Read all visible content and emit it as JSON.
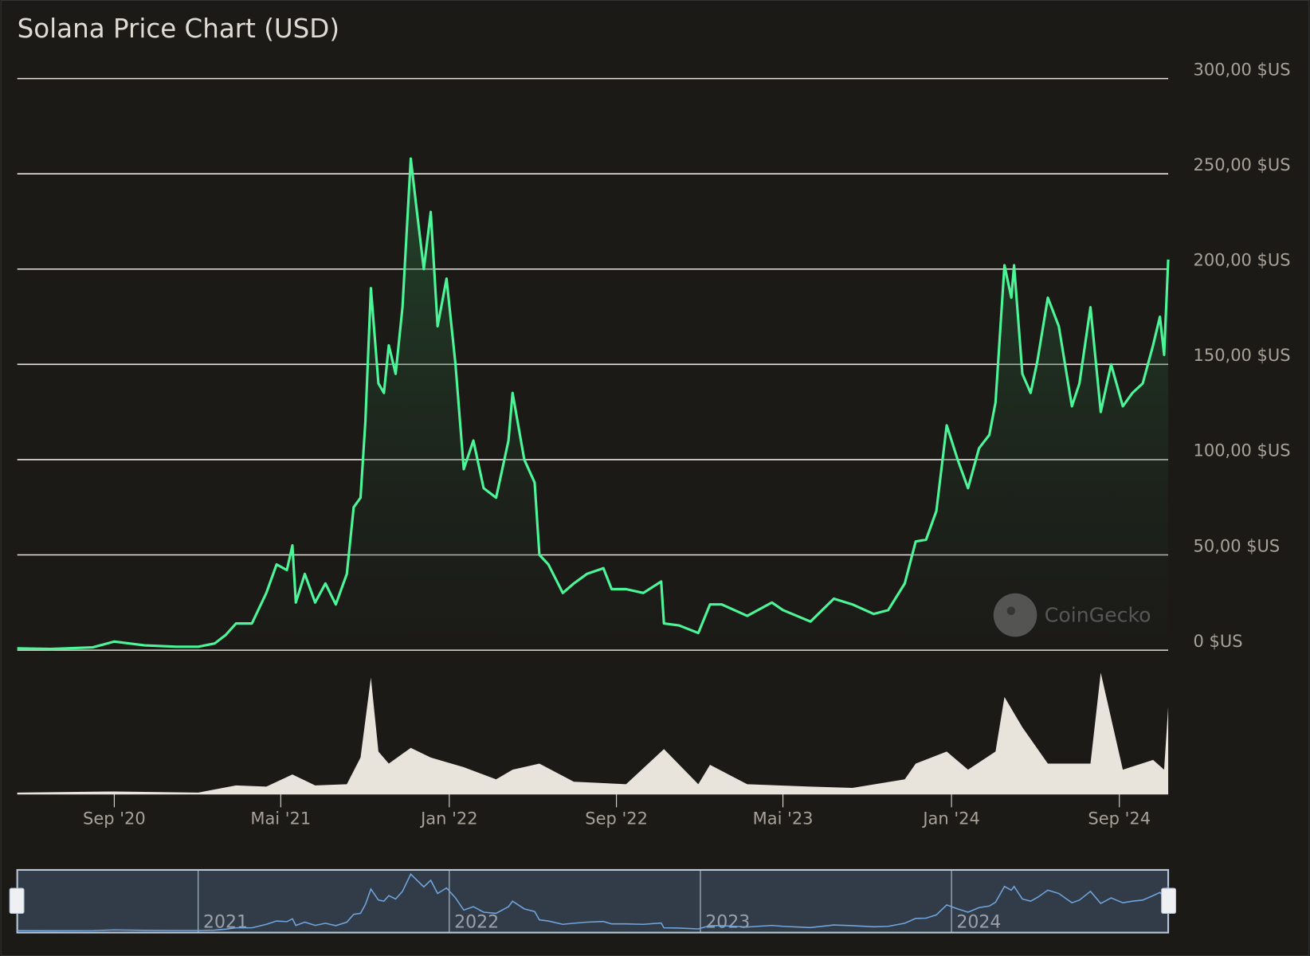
{
  "chart_data": {
    "type": "area",
    "title": "Solana Price Chart (USD)",
    "xlabel": "",
    "ylabel": "",
    "ylim": [
      0,
      300
    ],
    "xlim": [
      "2020-04-13",
      "2024-11-11"
    ],
    "grid": true,
    "legend": "none",
    "y_ticks": [
      {
        "value": 0,
        "label": "0 $US"
      },
      {
        "value": 50,
        "label": "50,00 $US"
      },
      {
        "value": 100,
        "label": "100,00 $US"
      },
      {
        "value": 150,
        "label": "150,00 $US"
      },
      {
        "value": 200,
        "label": "200,00 $US"
      },
      {
        "value": 250,
        "label": "250,00 $US"
      },
      {
        "value": 300,
        "label": "300,00 $US"
      }
    ],
    "x_ticks": [
      {
        "date": "2020-09-01",
        "label": "Sep '20"
      },
      {
        "date": "2021-05-01",
        "label": "Mai '21"
      },
      {
        "date": "2022-01-01",
        "label": "Jan '22"
      },
      {
        "date": "2022-09-01",
        "label": "Sep '22"
      },
      {
        "date": "2023-05-01",
        "label": "Mai '23"
      },
      {
        "date": "2024-01-01",
        "label": "Jan '24"
      },
      {
        "date": "2024-09-01",
        "label": "Sep '24"
      }
    ],
    "navigator_years": [
      {
        "date": "2021-01-01",
        "label": "2021"
      },
      {
        "date": "2022-01-01",
        "label": "2022"
      },
      {
        "date": "2023-01-01",
        "label": "2023"
      },
      {
        "date": "2024-01-01",
        "label": "2024"
      }
    ],
    "colors": {
      "line": "#4cf597",
      "volume": "#e8e4dc",
      "navigator_line": "#6fa4dc",
      "background": "#1b1a17",
      "grid": "#e8e4dc"
    },
    "price": [
      [
        "2020-04-13",
        0.95
      ],
      [
        "2020-06-01",
        0.6
      ],
      [
        "2020-08-01",
        1.5
      ],
      [
        "2020-09-01",
        4.5
      ],
      [
        "2020-10-15",
        2.5
      ],
      [
        "2020-12-01",
        1.8
      ],
      [
        "2021-01-01",
        1.8
      ],
      [
        "2021-01-25",
        3.5
      ],
      [
        "2021-02-10",
        8
      ],
      [
        "2021-02-25",
        14
      ],
      [
        "2021-03-20",
        14
      ],
      [
        "2021-04-10",
        30
      ],
      [
        "2021-04-25",
        45
      ],
      [
        "2021-05-10",
        42
      ],
      [
        "2021-05-18",
        55
      ],
      [
        "2021-05-23",
        25
      ],
      [
        "2021-06-05",
        40
      ],
      [
        "2021-06-20",
        25
      ],
      [
        "2021-07-05",
        35
      ],
      [
        "2021-07-20",
        24
      ],
      [
        "2021-08-05",
        40
      ],
      [
        "2021-08-15",
        75
      ],
      [
        "2021-08-25",
        80
      ],
      [
        "2021-09-01",
        120
      ],
      [
        "2021-09-09",
        190
      ],
      [
        "2021-09-20",
        140
      ],
      [
        "2021-09-28",
        135
      ],
      [
        "2021-10-05",
        160
      ],
      [
        "2021-10-15",
        145
      ],
      [
        "2021-10-25",
        180
      ],
      [
        "2021-11-06",
        258
      ],
      [
        "2021-11-15",
        230
      ],
      [
        "2021-11-25",
        200
      ],
      [
        "2021-12-05",
        230
      ],
      [
        "2021-12-15",
        170
      ],
      [
        "2021-12-28",
        195
      ],
      [
        "2022-01-10",
        150
      ],
      [
        "2022-01-22",
        95
      ],
      [
        "2022-02-05",
        110
      ],
      [
        "2022-02-20",
        85
      ],
      [
        "2022-03-10",
        80
      ],
      [
        "2022-03-28",
        110
      ],
      [
        "2022-04-03",
        135
      ],
      [
        "2022-04-20",
        100
      ],
      [
        "2022-05-05",
        88
      ],
      [
        "2022-05-12",
        50
      ],
      [
        "2022-05-25",
        45
      ],
      [
        "2022-06-15",
        30
      ],
      [
        "2022-07-01",
        35
      ],
      [
        "2022-07-20",
        40
      ],
      [
        "2022-08-13",
        43
      ],
      [
        "2022-08-25",
        32
      ],
      [
        "2022-09-15",
        32
      ],
      [
        "2022-10-10",
        30
      ],
      [
        "2022-11-05",
        36
      ],
      [
        "2022-11-09",
        14
      ],
      [
        "2022-12-01",
        13
      ],
      [
        "2022-12-29",
        9
      ],
      [
        "2023-01-15",
        24
      ],
      [
        "2023-02-01",
        24
      ],
      [
        "2023-03-10",
        18
      ],
      [
        "2023-04-15",
        25
      ],
      [
        "2023-05-01",
        21
      ],
      [
        "2023-06-10",
        15
      ],
      [
        "2023-07-14",
        27
      ],
      [
        "2023-08-10",
        24
      ],
      [
        "2023-09-10",
        19
      ],
      [
        "2023-10-01",
        21
      ],
      [
        "2023-10-25",
        35
      ],
      [
        "2023-11-10",
        57
      ],
      [
        "2023-11-25",
        58
      ],
      [
        "2023-12-10",
        73
      ],
      [
        "2023-12-25",
        118
      ],
      [
        "2024-01-10",
        100
      ],
      [
        "2024-01-25",
        85
      ],
      [
        "2024-02-10",
        106
      ],
      [
        "2024-02-25",
        113
      ],
      [
        "2024-03-05",
        130
      ],
      [
        "2024-03-18",
        202
      ],
      [
        "2024-03-28",
        185
      ],
      [
        "2024-04-01",
        202
      ],
      [
        "2024-04-13",
        145
      ],
      [
        "2024-04-25",
        135
      ],
      [
        "2024-05-05",
        152
      ],
      [
        "2024-05-20",
        185
      ],
      [
        "2024-06-05",
        170
      ],
      [
        "2024-06-24",
        128
      ],
      [
        "2024-07-05",
        140
      ],
      [
        "2024-07-21",
        180
      ],
      [
        "2024-08-05",
        125
      ],
      [
        "2024-08-20",
        150
      ],
      [
        "2024-09-06",
        128
      ],
      [
        "2024-09-20",
        135
      ],
      [
        "2024-10-05",
        140
      ],
      [
        "2024-10-20",
        160
      ],
      [
        "2024-10-30",
        175
      ],
      [
        "2024-11-05",
        155
      ],
      [
        "2024-11-11",
        205
      ]
    ],
    "volume_relative": [
      [
        "2020-04-13",
        0.01
      ],
      [
        "2020-09-01",
        0.02
      ],
      [
        "2021-01-01",
        0.01
      ],
      [
        "2021-02-25",
        0.07
      ],
      [
        "2021-04-10",
        0.06
      ],
      [
        "2021-05-18",
        0.16
      ],
      [
        "2021-06-20",
        0.07
      ],
      [
        "2021-08-05",
        0.08
      ],
      [
        "2021-08-25",
        0.3
      ],
      [
        "2021-09-09",
        0.96
      ],
      [
        "2021-09-20",
        0.35
      ],
      [
        "2021-10-05",
        0.25
      ],
      [
        "2021-11-06",
        0.38
      ],
      [
        "2021-12-05",
        0.3
      ],
      [
        "2022-01-22",
        0.22
      ],
      [
        "2022-03-10",
        0.12
      ],
      [
        "2022-04-03",
        0.2
      ],
      [
        "2022-05-12",
        0.25
      ],
      [
        "2022-07-01",
        0.1
      ],
      [
        "2022-09-15",
        0.08
      ],
      [
        "2022-11-09",
        0.37
      ],
      [
        "2022-12-29",
        0.08
      ],
      [
        "2023-01-15",
        0.24
      ],
      [
        "2023-03-10",
        0.08
      ],
      [
        "2023-06-10",
        0.06
      ],
      [
        "2023-08-10",
        0.05
      ],
      [
        "2023-10-25",
        0.12
      ],
      [
        "2023-11-10",
        0.25
      ],
      [
        "2023-12-25",
        0.35
      ],
      [
        "2024-01-25",
        0.2
      ],
      [
        "2024-03-05",
        0.35
      ],
      [
        "2024-03-18",
        0.8
      ],
      [
        "2024-04-13",
        0.55
      ],
      [
        "2024-05-20",
        0.25
      ],
      [
        "2024-07-21",
        0.25
      ],
      [
        "2024-08-05",
        1.0
      ],
      [
        "2024-09-06",
        0.2
      ],
      [
        "2024-10-20",
        0.28
      ],
      [
        "2024-11-05",
        0.2
      ],
      [
        "2024-11-11",
        0.72
      ]
    ]
  },
  "watermark": {
    "text": "CoinGecko",
    "icon": "coingecko-logo-icon"
  }
}
